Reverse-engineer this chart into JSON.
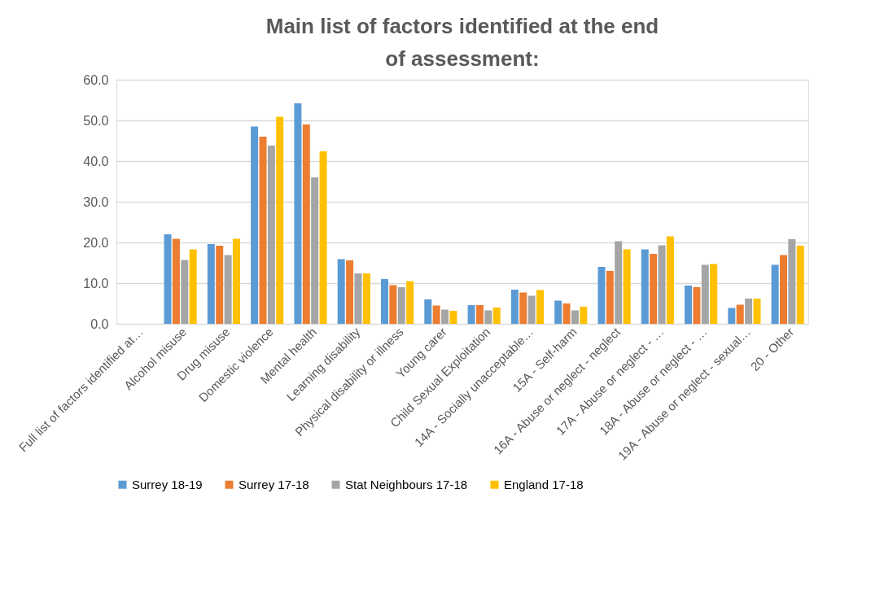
{
  "chart_data": {
    "type": "bar",
    "title": "Main list of factors identified at the end of assessment:",
    "categories": [
      "Full list of factors identified at…",
      "Alcohol misuse",
      "Drug misuse",
      "Domestic violence",
      "Mental health",
      "Learning disability",
      "Physical disability or illness",
      "Young carer",
      "Child Sexual Exploitation",
      "14A - Socially unacceptable…",
      "15A - Self-harm",
      "16A - Abuse or neglect - neglect",
      "17A - Abuse or neglect - …",
      "18A - Abuse or neglect - …",
      "19A - Abuse or neglect - sexual…",
      "20 - Other"
    ],
    "series": [
      {
        "name": "Surrey 18-19",
        "color": "#5b9bd5",
        "values": [
          null,
          22.0,
          19.6,
          48.5,
          54.2,
          15.9,
          11.0,
          6.0,
          4.6,
          8.4,
          5.7,
          14.0,
          18.3,
          9.4,
          3.9,
          14.5
        ]
      },
      {
        "name": "Surrey 17-18",
        "color": "#ed7d31",
        "values": [
          null,
          20.9,
          19.2,
          46.0,
          49.0,
          15.6,
          9.5,
          4.5,
          4.6,
          7.7,
          5.0,
          13.0,
          17.2,
          9.0,
          4.7,
          16.9
        ]
      },
      {
        "name": "Stat Neighbours 17-18",
        "color": "#a5a5a5",
        "values": [
          null,
          15.7,
          16.9,
          43.8,
          36.0,
          12.4,
          9.0,
          3.5,
          3.3,
          6.9,
          3.3,
          20.3,
          19.3,
          14.5,
          6.2,
          20.8
        ]
      },
      {
        "name": "England 17-18",
        "color": "#ffc000",
        "values": [
          null,
          18.3,
          20.9,
          50.9,
          42.4,
          12.4,
          10.5,
          3.2,
          4.0,
          8.3,
          4.2,
          18.3,
          21.5,
          14.7,
          6.2,
          19.2
        ]
      }
    ],
    "ylim": [
      0,
      60
    ],
    "yticks": [
      {
        "value": 0,
        "label": "0.0"
      },
      {
        "value": 10,
        "label": "10.0"
      },
      {
        "value": 20,
        "label": "20.0"
      },
      {
        "value": 30,
        "label": "30.0"
      },
      {
        "value": 40,
        "label": "40.0"
      },
      {
        "value": 50,
        "label": "50.0"
      },
      {
        "value": 60,
        "label": "60.0"
      }
    ],
    "grid": "y",
    "legend": "bottom"
  }
}
